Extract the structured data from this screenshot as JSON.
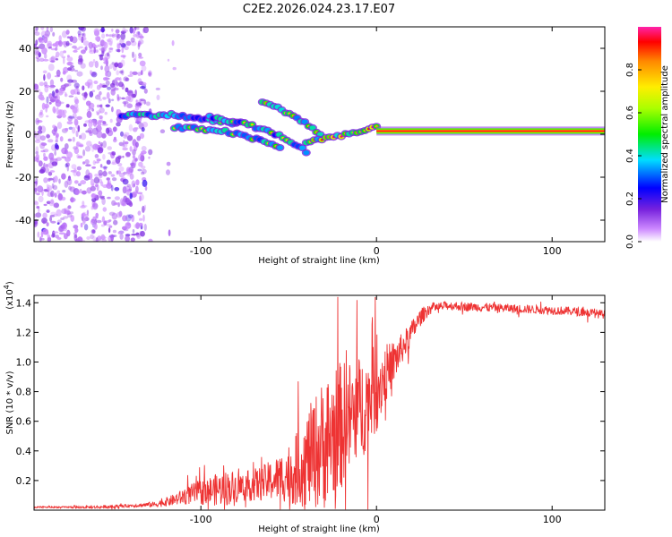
{
  "figure": {
    "title": "C2E2.2026.024.23.17.E07"
  },
  "chart_data": [
    {
      "type": "heatmap",
      "title": "",
      "xlabel": "Height of straight line (km)",
      "ylabel": "Frequency (Hz)",
      "xlim": [
        -195,
        130
      ],
      "ylim": [
        -50,
        50
      ],
      "xticks": [
        -100,
        0,
        100
      ],
      "xtick_labels": [
        "-100",
        "0",
        "100"
      ],
      "yticks": [
        -40,
        -20,
        0,
        20,
        40
      ],
      "ytick_labels": [
        "-40",
        "-20",
        "0",
        "20",
        "40"
      ],
      "colorbar": {
        "label": "Normalized spectral amplitude",
        "range": [
          0,
          1
        ],
        "ticks": [
          0.0,
          0.2,
          0.4,
          0.6,
          0.8
        ],
        "tick_labels": [
          "0.0",
          "0.2",
          "0.4",
          "0.6",
          "0.8"
        ]
      },
      "features": [
        {
          "name": "noise-region",
          "x_range": [
            -195,
            -115
          ],
          "f_range": [
            -50,
            50
          ],
          "amplitude": 0.05
        },
        {
          "name": "upper-band",
          "x": [
            -145,
            -115,
            -100,
            -80
          ],
          "f": [
            9,
            9,
            7,
            5
          ],
          "amplitude": 0.4
        },
        {
          "name": "descending-trace-a",
          "x": [
            -115,
            -90,
            -70,
            -55
          ],
          "f": [
            3,
            2,
            -2,
            -6
          ],
          "amplitude": 0.45
        },
        {
          "name": "descending-trace-b",
          "x": [
            -95,
            -75,
            -60,
            -50,
            -40
          ],
          "f": [
            8,
            5,
            1,
            -3,
            -8
          ],
          "amplitude": 0.45
        },
        {
          "name": "descending-trace-c",
          "x": [
            -65,
            -50,
            -40,
            -32
          ],
          "f": [
            15,
            10,
            5,
            0
          ],
          "amplitude": 0.5
        },
        {
          "name": "converging-trace",
          "x": [
            -40,
            -25,
            -10,
            0
          ],
          "f": [
            -4,
            -1,
            1,
            3
          ],
          "amplitude": 0.6
        },
        {
          "name": "main-line",
          "x": [
            0,
            130
          ],
          "f": [
            1.5,
            1.5
          ],
          "amplitude": 0.9
        }
      ]
    },
    {
      "type": "line",
      "title": "",
      "xlabel": "Height of straight line (km)",
      "ylabel": "SNR (10 * v/v)",
      "y_multiplier": "(x10",
      "y_multiplier_exp": "4",
      "y_multiplier_close": ")",
      "xlim": [
        -195,
        130
      ],
      "ylim": [
        0,
        1.45
      ],
      "xticks": [
        -100,
        0,
        100
      ],
      "xtick_labels": [
        "-100",
        "0",
        "100"
      ],
      "yticks": [
        0.2,
        0.4,
        0.6,
        0.8,
        1.0,
        1.2,
        1.4
      ],
      "ytick_labels": [
        "0.2",
        "0.4",
        "0.6",
        "0.8",
        "1.0",
        "1.2",
        "1.4"
      ],
      "series": [
        {
          "name": "SNR",
          "color": "#ee3333",
          "x": [
            -195,
            -180,
            -160,
            -140,
            -125,
            -115,
            -105,
            -95,
            -85,
            -75,
            -65,
            -55,
            -45,
            -38,
            -30,
            -22,
            -15,
            -8,
            0,
            5,
            10,
            15,
            20,
            25,
            30,
            40,
            60,
            80,
            100,
            115,
            130
          ],
          "values": [
            0.02,
            0.02,
            0.02,
            0.03,
            0.04,
            0.07,
            0.11,
            0.13,
            0.15,
            0.16,
            0.18,
            0.22,
            0.28,
            0.36,
            0.45,
            0.55,
            0.62,
            0.7,
            0.82,
            0.92,
            1.0,
            1.1,
            1.2,
            1.3,
            1.36,
            1.38,
            1.37,
            1.36,
            1.35,
            1.34,
            1.32
          ],
          "noise_amplitude": [
            0.005,
            0.005,
            0.01,
            0.01,
            0.02,
            0.04,
            0.07,
            0.1,
            0.12,
            0.1,
            0.12,
            0.16,
            0.25,
            0.35,
            0.45,
            0.45,
            0.4,
            0.35,
            0.3,
            0.2,
            0.15,
            0.1,
            0.08,
            0.06,
            0.04,
            0.03,
            0.03,
            0.03,
            0.03,
            0.03,
            0.03
          ]
        }
      ]
    }
  ]
}
